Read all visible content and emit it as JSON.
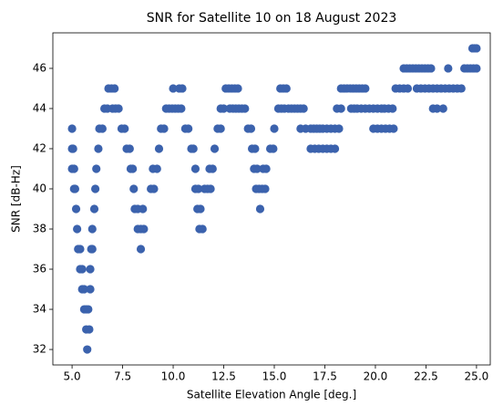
{
  "chart_data": {
    "type": "scatter",
    "title": "SNR for Satellite 10 on 18 August 2023",
    "x_label": "Satellite Elevation Angle [deg.]",
    "y_label": "SNR [dB-Hz]",
    "color": "#3b62ad",
    "xlim": [
      4.05,
      25.68
    ],
    "ylim": [
      31.23,
      47.77
    ],
    "xticks": [
      {
        "value": 5,
        "label": "5.0"
      },
      7.5,
      {
        "value": 10,
        "label": "10.0"
      },
      12.5,
      {
        "value": 15,
        "label": "15.0"
      },
      17.5,
      {
        "value": 20,
        "label": "20.0"
      },
      22.5,
      {
        "value": 25,
        "label": "25.0"
      }
    ],
    "yticks": [
      32,
      34,
      36,
      38,
      40,
      42,
      44,
      46
    ],
    "x": [
      5.0,
      5.0,
      5.05,
      5.0,
      5.1,
      5.1,
      5.15,
      5.2,
      5.25,
      5.3,
      5.4,
      5.4,
      5.5,
      5.5,
      5.6,
      5.6,
      5.7,
      5.8,
      5.7,
      5.85,
      5.75,
      5.9,
      5.9,
      5.95,
      6.0,
      6.0,
      6.1,
      6.15,
      6.2,
      6.3,
      6.35,
      6.5,
      6.6,
      6.75,
      6.8,
      6.95,
      7.1,
      7.0,
      7.15,
      7.3,
      7.45,
      7.6,
      7.7,
      7.85,
      7.9,
      8.0,
      8.05,
      8.1,
      8.25,
      8.25,
      8.4,
      8.55,
      8.4,
      8.5,
      8.9,
      9.05,
      9.0,
      9.2,
      9.3,
      9.4,
      9.55,
      9.65,
      9.8,
      9.95,
      10.1,
      10.25,
      10.4,
      10.0,
      10.3,
      10.45,
      10.6,
      10.75,
      10.9,
      11.0,
      11.1,
      11.1,
      11.25,
      11.2,
      11.35,
      11.3,
      11.45,
      11.55,
      11.7,
      11.85,
      11.8,
      11.95,
      12.05,
      12.2,
      12.35,
      12.35,
      12.5,
      12.6,
      12.75,
      12.9,
      13.05,
      13.2,
      12.8,
      12.95,
      13.1,
      13.25,
      13.4,
      13.55,
      13.7,
      13.85,
      13.9,
      14.05,
      14.0,
      14.15,
      14.1,
      14.25,
      14.4,
      14.55,
      14.3,
      14.45,
      14.6,
      14.8,
      14.95,
      15.0,
      15.2,
      15.35,
      15.5,
      15.3,
      15.45,
      15.6,
      15.7,
      15.85,
      16.0,
      16.15,
      16.3,
      16.45,
      16.3,
      16.55,
      16.8,
      16.95,
      17.1,
      17.25,
      17.4,
      17.6,
      17.8,
      18.0,
      18.2,
      16.8,
      17.0,
      17.2,
      17.4,
      17.6,
      17.8,
      18.0,
      18.1,
      18.3,
      18.3,
      18.45,
      18.6,
      18.75,
      18.9,
      19.05,
      19.2,
      19.35,
      19.5,
      18.8,
      18.95,
      19.1,
      19.3,
      19.5,
      19.7,
      19.9,
      20.1,
      20.3,
      19.9,
      20.1,
      20.3,
      20.5,
      20.7,
      20.9,
      20.45,
      20.65,
      20.85,
      21.0,
      21.2,
      21.4,
      21.6,
      21.4,
      21.55,
      21.7,
      21.85,
      22.0,
      22.15,
      22.3,
      22.45,
      22.6,
      22.75,
      22.05,
      22.25,
      22.45,
      22.65,
      22.85,
      23.05,
      23.25,
      23.45,
      23.65,
      23.85,
      24.05,
      24.25,
      22.85,
      23.05,
      23.35,
      23.6,
      24.4,
      24.55,
      24.7,
      24.85,
      25.0,
      24.8,
      24.9,
      25.0
    ],
    "values": [
      43,
      42,
      42,
      41,
      41,
      40,
      40,
      39,
      38,
      37,
      37,
      36,
      36,
      35,
      35,
      34,
      34,
      34,
      33,
      33,
      32,
      36,
      35,
      37,
      37,
      38,
      39,
      40,
      41,
      42,
      43,
      43,
      44,
      44,
      45,
      45,
      45,
      44,
      44,
      44,
      43,
      43,
      42,
      42,
      41,
      41,
      40,
      39,
      39,
      38,
      38,
      38,
      37,
      39,
      40,
      40,
      41,
      41,
      42,
      43,
      43,
      44,
      44,
      44,
      44,
      44,
      44,
      45,
      45,
      45,
      43,
      43,
      42,
      42,
      41,
      40,
      40,
      39,
      39,
      38,
      38,
      40,
      40,
      40,
      41,
      41,
      42,
      43,
      43,
      44,
      44,
      45,
      45,
      45,
      45,
      45,
      44,
      44,
      44,
      44,
      44,
      44,
      43,
      43,
      42,
      42,
      41,
      41,
      40,
      40,
      40,
      40,
      39,
      41,
      41,
      42,
      42,
      43,
      44,
      44,
      44,
      45,
      45,
      45,
      44,
      44,
      44,
      44,
      44,
      44,
      43,
      43,
      43,
      43,
      43,
      43,
      43,
      43,
      43,
      43,
      43,
      42,
      42,
      42,
      42,
      42,
      42,
      42,
      44,
      44,
      45,
      45,
      45,
      45,
      45,
      45,
      45,
      45,
      45,
      44,
      44,
      44,
      44,
      44,
      44,
      44,
      44,
      44,
      43,
      43,
      43,
      43,
      43,
      43,
      44,
      44,
      44,
      45,
      45,
      45,
      45,
      46,
      46,
      46,
      46,
      46,
      46,
      46,
      46,
      46,
      46,
      45,
      45,
      45,
      45,
      45,
      45,
      45,
      45,
      45,
      45,
      45,
      45,
      44,
      44,
      44,
      46,
      46,
      46,
      46,
      46,
      46,
      47,
      47,
      47
    ]
  }
}
